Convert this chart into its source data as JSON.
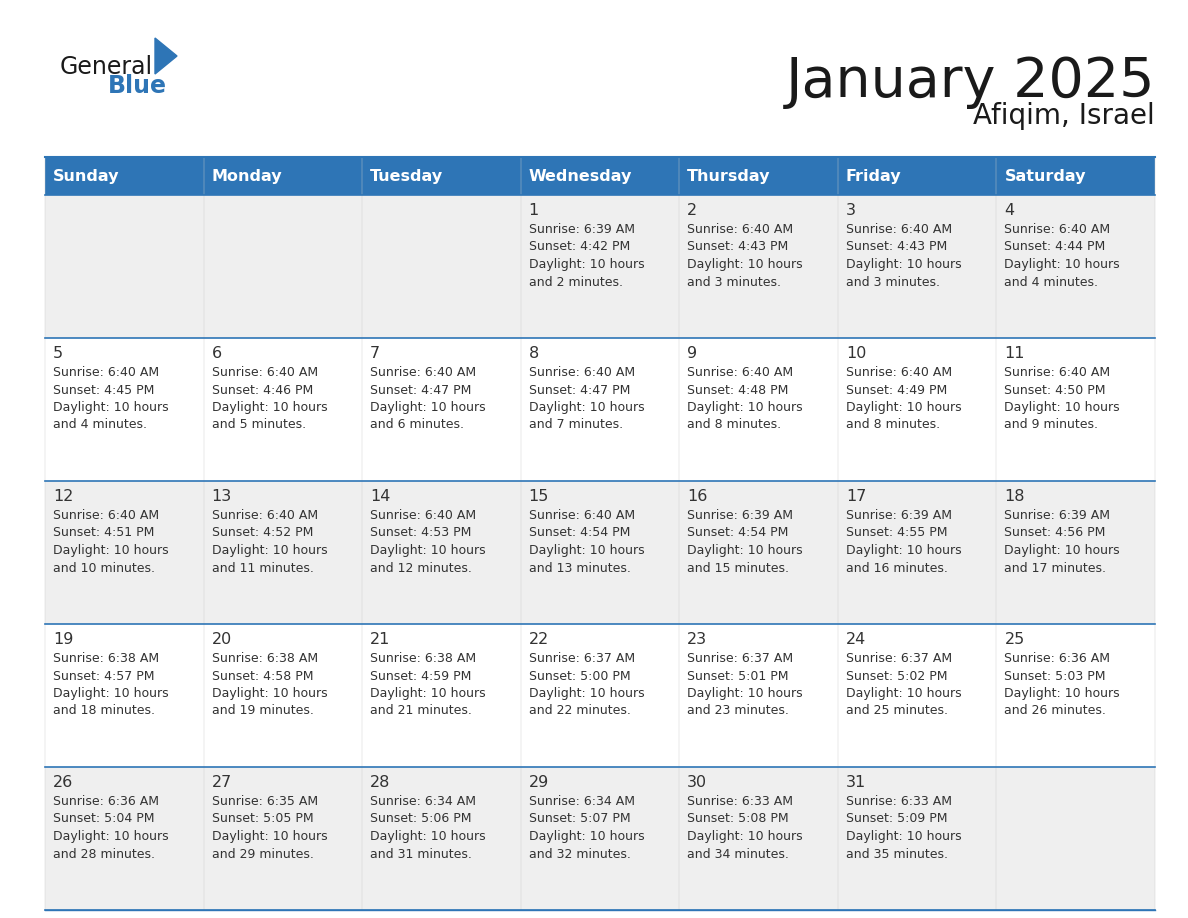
{
  "title": "January 2025",
  "subtitle": "Afiqim, Israel",
  "header_color": "#2E75B6",
  "header_text_color": "#FFFFFF",
  "row_bg_odd": "#EFEFEF",
  "row_bg_even": "#FFFFFF",
  "border_color": "#2E75B6",
  "text_color": "#333333",
  "day_num_color": "#333333",
  "days_of_week": [
    "Sunday",
    "Monday",
    "Tuesday",
    "Wednesday",
    "Thursday",
    "Friday",
    "Saturday"
  ],
  "logo_general_color": "#1a1a1a",
  "logo_blue_color": "#2E75B6",
  "calendar_data": [
    [
      {
        "day": "",
        "info": ""
      },
      {
        "day": "",
        "info": ""
      },
      {
        "day": "",
        "info": ""
      },
      {
        "day": "1",
        "info": "Sunrise: 6:39 AM\nSunset: 4:42 PM\nDaylight: 10 hours\nand 2 minutes."
      },
      {
        "day": "2",
        "info": "Sunrise: 6:40 AM\nSunset: 4:43 PM\nDaylight: 10 hours\nand 3 minutes."
      },
      {
        "day": "3",
        "info": "Sunrise: 6:40 AM\nSunset: 4:43 PM\nDaylight: 10 hours\nand 3 minutes."
      },
      {
        "day": "4",
        "info": "Sunrise: 6:40 AM\nSunset: 4:44 PM\nDaylight: 10 hours\nand 4 minutes."
      }
    ],
    [
      {
        "day": "5",
        "info": "Sunrise: 6:40 AM\nSunset: 4:45 PM\nDaylight: 10 hours\nand 4 minutes."
      },
      {
        "day": "6",
        "info": "Sunrise: 6:40 AM\nSunset: 4:46 PM\nDaylight: 10 hours\nand 5 minutes."
      },
      {
        "day": "7",
        "info": "Sunrise: 6:40 AM\nSunset: 4:47 PM\nDaylight: 10 hours\nand 6 minutes."
      },
      {
        "day": "8",
        "info": "Sunrise: 6:40 AM\nSunset: 4:47 PM\nDaylight: 10 hours\nand 7 minutes."
      },
      {
        "day": "9",
        "info": "Sunrise: 6:40 AM\nSunset: 4:48 PM\nDaylight: 10 hours\nand 8 minutes."
      },
      {
        "day": "10",
        "info": "Sunrise: 6:40 AM\nSunset: 4:49 PM\nDaylight: 10 hours\nand 8 minutes."
      },
      {
        "day": "11",
        "info": "Sunrise: 6:40 AM\nSunset: 4:50 PM\nDaylight: 10 hours\nand 9 minutes."
      }
    ],
    [
      {
        "day": "12",
        "info": "Sunrise: 6:40 AM\nSunset: 4:51 PM\nDaylight: 10 hours\nand 10 minutes."
      },
      {
        "day": "13",
        "info": "Sunrise: 6:40 AM\nSunset: 4:52 PM\nDaylight: 10 hours\nand 11 minutes."
      },
      {
        "day": "14",
        "info": "Sunrise: 6:40 AM\nSunset: 4:53 PM\nDaylight: 10 hours\nand 12 minutes."
      },
      {
        "day": "15",
        "info": "Sunrise: 6:40 AM\nSunset: 4:54 PM\nDaylight: 10 hours\nand 13 minutes."
      },
      {
        "day": "16",
        "info": "Sunrise: 6:39 AM\nSunset: 4:54 PM\nDaylight: 10 hours\nand 15 minutes."
      },
      {
        "day": "17",
        "info": "Sunrise: 6:39 AM\nSunset: 4:55 PM\nDaylight: 10 hours\nand 16 minutes."
      },
      {
        "day": "18",
        "info": "Sunrise: 6:39 AM\nSunset: 4:56 PM\nDaylight: 10 hours\nand 17 minutes."
      }
    ],
    [
      {
        "day": "19",
        "info": "Sunrise: 6:38 AM\nSunset: 4:57 PM\nDaylight: 10 hours\nand 18 minutes."
      },
      {
        "day": "20",
        "info": "Sunrise: 6:38 AM\nSunset: 4:58 PM\nDaylight: 10 hours\nand 19 minutes."
      },
      {
        "day": "21",
        "info": "Sunrise: 6:38 AM\nSunset: 4:59 PM\nDaylight: 10 hours\nand 21 minutes."
      },
      {
        "day": "22",
        "info": "Sunrise: 6:37 AM\nSunset: 5:00 PM\nDaylight: 10 hours\nand 22 minutes."
      },
      {
        "day": "23",
        "info": "Sunrise: 6:37 AM\nSunset: 5:01 PM\nDaylight: 10 hours\nand 23 minutes."
      },
      {
        "day": "24",
        "info": "Sunrise: 6:37 AM\nSunset: 5:02 PM\nDaylight: 10 hours\nand 25 minutes."
      },
      {
        "day": "25",
        "info": "Sunrise: 6:36 AM\nSunset: 5:03 PM\nDaylight: 10 hours\nand 26 minutes."
      }
    ],
    [
      {
        "day": "26",
        "info": "Sunrise: 6:36 AM\nSunset: 5:04 PM\nDaylight: 10 hours\nand 28 minutes."
      },
      {
        "day": "27",
        "info": "Sunrise: 6:35 AM\nSunset: 5:05 PM\nDaylight: 10 hours\nand 29 minutes."
      },
      {
        "day": "28",
        "info": "Sunrise: 6:34 AM\nSunset: 5:06 PM\nDaylight: 10 hours\nand 31 minutes."
      },
      {
        "day": "29",
        "info": "Sunrise: 6:34 AM\nSunset: 5:07 PM\nDaylight: 10 hours\nand 32 minutes."
      },
      {
        "day": "30",
        "info": "Sunrise: 6:33 AM\nSunset: 5:08 PM\nDaylight: 10 hours\nand 34 minutes."
      },
      {
        "day": "31",
        "info": "Sunrise: 6:33 AM\nSunset: 5:09 PM\nDaylight: 10 hours\nand 35 minutes."
      },
      {
        "day": "",
        "info": ""
      }
    ]
  ]
}
